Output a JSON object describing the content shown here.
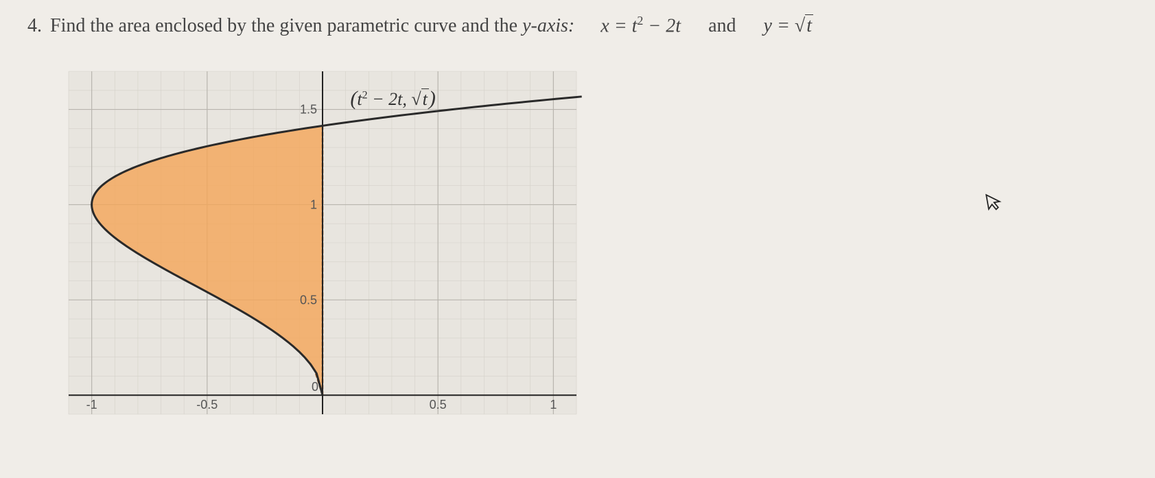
{
  "question": {
    "number": "4.",
    "text": "Find the area enclosed by the given parametric curve and the ",
    "axis_text": "y-axis:",
    "eq1_lhs": "x",
    "eq1_rhs_a": "t",
    "eq1_rhs_exp": "2",
    "eq1_rhs_b": " − 2t",
    "and": "and",
    "eq2_lhs": "y",
    "eq2_rhs_root": "t"
  },
  "graph": {
    "xlim": [
      -1.1,
      1.1
    ],
    "ylim": [
      -0.1,
      1.7
    ],
    "xticks": [
      -1,
      -0.5,
      0,
      0.5,
      1
    ],
    "xtick_labels": [
      "-1",
      "-0.5",
      "0",
      "0.5",
      "1"
    ],
    "yticks": [
      0.5,
      1,
      1.5
    ],
    "ytick_labels": [
      "0.5",
      "1",
      "1.5"
    ],
    "background": "#e8e5df",
    "major_grid_color": "#b8b5ae",
    "minor_grid_color": "#d4d1ca",
    "axis_color": "#222222",
    "curve_color": "#2a2a2a",
    "curve_width": 3,
    "fill_color": "#f5a454",
    "fill_opacity": 0.78,
    "fill_border_color": "#a55a1a",
    "fill_border_width": 2.5,
    "axis_label_fontsize": 18,
    "axis_label_color": "#555",
    "param_label_parts": {
      "open": "(",
      "t": "t",
      "exp": "2",
      "mid": " − 2t, √",
      "root": "t",
      "close": ")"
    },
    "t_range": [
      0,
      2.6
    ],
    "region_t_range": [
      0,
      2
    ],
    "minor_step_x": 0.1,
    "minor_step_y": 0.1,
    "major_step_x": 0.5,
    "major_step_y": 0.5
  }
}
